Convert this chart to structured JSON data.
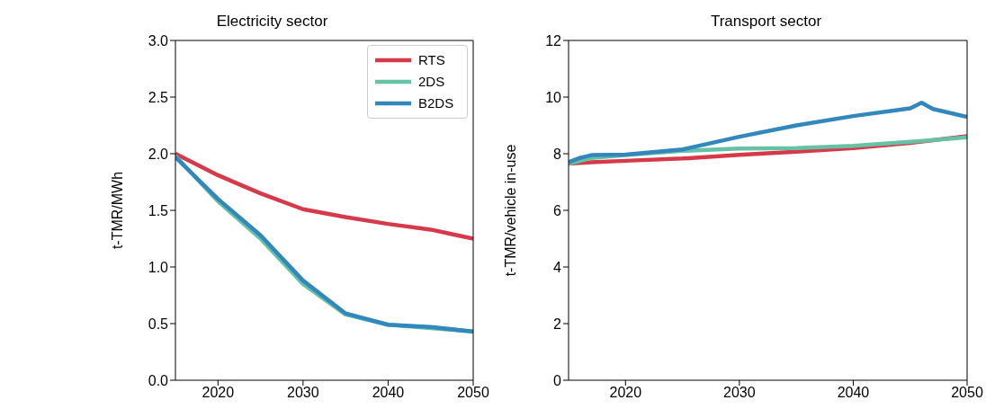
{
  "chart_data": [
    {
      "type": "line",
      "title": "Electricity sector",
      "ylabel": "t-TMR/MWh",
      "xlim": [
        2015,
        2050
      ],
      "xticks": [
        2020,
        2030,
        2040,
        2050
      ],
      "ylim": [
        0,
        3
      ],
      "yticks": [
        {
          "value": 0,
          "label": "0.0"
        },
        {
          "value": 0.5,
          "label": "0.5"
        },
        {
          "value": 1,
          "label": "1.0"
        },
        {
          "value": 1.5,
          "label": "1.5"
        },
        {
          "value": 2,
          "label": "2.0"
        },
        {
          "value": 2.5,
          "label": "2.5"
        },
        {
          "value": 3,
          "label": "3.0"
        }
      ],
      "legend": "top right",
      "marker": "none",
      "line_style": "solid",
      "x": [
        2015,
        2020,
        2025,
        2030,
        2035,
        2040,
        2045,
        2050
      ],
      "series": [
        {
          "name": "RTS",
          "color": "#d63a4a",
          "values": [
            2.0,
            1.81,
            1.65,
            1.51,
            1.44,
            1.38,
            1.33,
            1.25
          ]
        },
        {
          "name": "2DS",
          "color": "#66c2a5",
          "values": [
            1.98,
            1.58,
            1.25,
            0.85,
            0.58,
            0.49,
            0.46,
            0.43
          ]
        },
        {
          "name": "B2DS",
          "color": "#3288bd",
          "values": [
            1.97,
            1.6,
            1.28,
            0.88,
            0.59,
            0.49,
            0.47,
            0.43
          ]
        }
      ]
    },
    {
      "type": "line",
      "title": "Transport sector",
      "ylabel": "t-TMR/vehicle in-use",
      "xlim": [
        2015,
        2050
      ],
      "xticks": [
        2020,
        2030,
        2040,
        2050
      ],
      "ylim": [
        0,
        12
      ],
      "yticks": [
        0,
        2,
        4,
        6,
        8,
        10,
        12
      ],
      "marker": "none",
      "line_style": "solid",
      "series": [
        {
          "color": "#d63a4a",
          "x": [
            2015,
            2017,
            2020,
            2025,
            2030,
            2035,
            2040,
            2045,
            2050
          ],
          "values": [
            7.65,
            7.7,
            7.75,
            7.83,
            7.96,
            8.07,
            8.2,
            8.38,
            8.62
          ]
        },
        {
          "color": "#66c2a5",
          "x": [
            2015,
            2017,
            2020,
            2025,
            2030,
            2035,
            2040,
            2045,
            2050
          ],
          "values": [
            7.65,
            7.85,
            7.95,
            8.1,
            8.18,
            8.2,
            8.28,
            8.42,
            8.58
          ]
        },
        {
          "color": "#3288bd",
          "x": [
            2015,
            2016,
            2017,
            2020,
            2025,
            2030,
            2035,
            2040,
            2045,
            2046,
            2047,
            2050
          ],
          "values": [
            7.7,
            7.85,
            7.95,
            7.97,
            8.15,
            8.6,
            9.0,
            9.33,
            9.6,
            9.8,
            9.58,
            9.3
          ]
        }
      ]
    }
  ]
}
